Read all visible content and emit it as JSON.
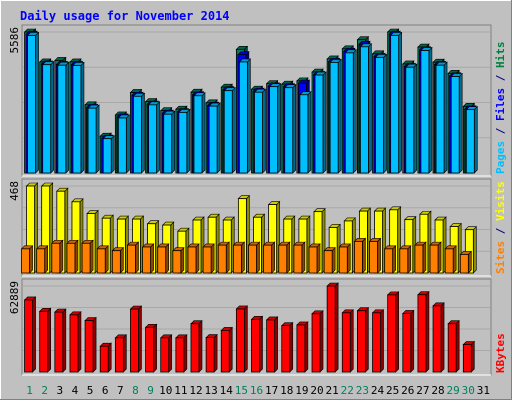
{
  "chart_data": {
    "type": "bar",
    "title": "Daily usage for November 2014",
    "categories": [
      "1",
      "2",
      "3",
      "4",
      "5",
      "6",
      "7",
      "8",
      "9",
      "10",
      "11",
      "12",
      "13",
      "14",
      "15",
      "16",
      "17",
      "18",
      "19",
      "20",
      "21",
      "22",
      "23",
      "24",
      "25",
      "26",
      "27",
      "28",
      "29",
      "30",
      "31"
    ],
    "weekend_days": [
      "1",
      "2",
      "8",
      "9",
      "15",
      "16",
      "22",
      "23",
      "29",
      "30"
    ],
    "panels": [
      {
        "name": "hits-files-pages",
        "max_label": "5586",
        "ylim": [
          0,
          5586
        ],
        "right_label_parts": [
          {
            "text": "Pages",
            "color": "#00bfff"
          },
          {
            "text": " / ",
            "color": "#000080"
          },
          {
            "text": "Files",
            "color": "#0000ff"
          },
          {
            "text": " / ",
            "color": "#000080"
          },
          {
            "text": "Hits",
            "color": "#008040"
          }
        ],
        "series": [
          {
            "name": "Hits",
            "color": "#00805c",
            "values": [
              5586,
              4400,
              4460,
              4400,
              2700,
              1460,
              2300,
              3190,
              2830,
              2470,
              2530,
              3200,
              2780,
              3400,
              4900,
              3320,
              3540,
              3520,
              3650,
              4000,
              4520,
              4920,
              5280,
              4720,
              5586,
              4320,
              4990,
              4390,
              3950,
              2640,
              0
            ]
          },
          {
            "name": "Files",
            "color": "#0000ff",
            "values": [
              5500,
              4320,
              4300,
              4300,
              2600,
              1380,
              2220,
              3080,
              2730,
              2370,
              2430,
              3100,
              2680,
              3300,
              4690,
              3240,
              3450,
              3420,
              3560,
              3900,
              4420,
              4820,
              5100,
              4620,
              5500,
              4220,
              4880,
              4300,
              3850,
              2540,
              0
            ]
          },
          {
            "name": "Pages",
            "color": "#00bfff",
            "values": [
              5450,
              4290,
              4270,
              4260,
              2570,
              1360,
              2180,
              3040,
              2700,
              2330,
              2400,
              3060,
              2650,
              3260,
              4400,
              3200,
              3420,
              3380,
              3100,
              3880,
              4380,
              4760,
              5000,
              4580,
              5450,
              4190,
              4850,
              4270,
              3820,
              2510,
              0
            ]
          }
        ]
      },
      {
        "name": "visits-sites",
        "max_label": "468",
        "ylim": [
          0,
          468
        ],
        "right_label_parts": [
          {
            "text": "Sites",
            "color": "#ff8000"
          },
          {
            "text": " / ",
            "color": "#000080"
          },
          {
            "text": "Visits",
            "color": "#ffff00"
          }
        ],
        "series": [
          {
            "name": "Visits",
            "color": "#ffff00",
            "values": [
              468,
              468,
              440,
              383,
              320,
              295,
              290,
              290,
              265,
              258,
              225,
              285,
              300,
              285,
              400,
              300,
              368,
              290,
              290,
              330,
              245,
              280,
              333,
              333,
              340,
              287,
              316,
              285,
              250,
              233,
              0
            ]
          },
          {
            "name": "Sites",
            "color": "#ff8000",
            "values": [
              130,
              130,
              160,
              160,
              160,
              130,
              120,
              150,
              140,
              140,
              120,
              140,
              140,
              150,
              150,
              150,
              150,
              150,
              150,
              140,
              120,
              140,
              170,
              170,
              130,
              130,
              150,
              150,
              130,
              100,
              0
            ]
          }
        ]
      },
      {
        "name": "kbytes",
        "max_label": "62889",
        "ylim": [
          0,
          62889
        ],
        "right_label_parts": [
          {
            "text": "KBytes",
            "color": "#ff0000"
          }
        ],
        "series": [
          {
            "name": "KBytes",
            "color": "#ff0000",
            "values": [
              52700,
              44400,
              43800,
              41800,
              37600,
              18900,
              25000,
              46000,
              32700,
              25000,
              25000,
              35300,
              25200,
              30400,
              46100,
              38500,
              38100,
              33900,
              34400,
              42600,
              62889,
              43300,
              44800,
              43300,
              56400,
              42800,
              56500,
              48400,
              35300,
              20100,
              0
            ]
          }
        ]
      }
    ]
  }
}
